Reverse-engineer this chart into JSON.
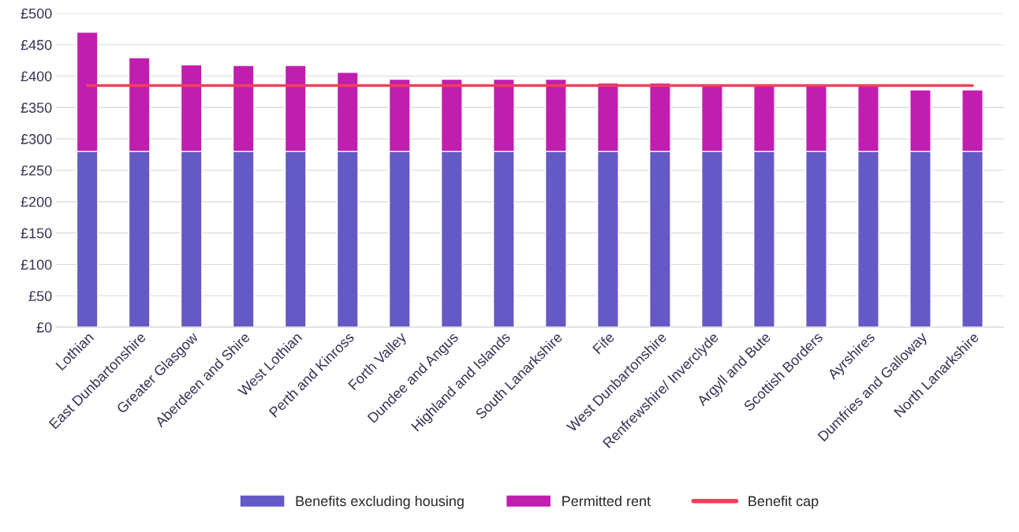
{
  "chart_data": {
    "type": "bar",
    "stacked": true,
    "categories": [
      "Lothian",
      "East Dunbartonshire",
      "Greater Glasgow",
      "Aberdeen and Shire",
      "West Lothian",
      "Perth and Kinross",
      "Forth Valley",
      "Dundee and Angus",
      "Highland and Islands",
      "South Lanarkshire",
      "Fife",
      "West Dunbartonshire",
      "Renfrewshire/ Inverclyde",
      "Argyll and Bute",
      "Scottish Borders",
      "Ayrshires",
      "Dumfries and Galloway",
      "North Lanarkshire"
    ],
    "series": [
      {
        "name": "Benefits excluding housing",
        "color": "#6459c5",
        "values": [
          280,
          280,
          280,
          280,
          280,
          280,
          280,
          280,
          280,
          280,
          280,
          280,
          280,
          280,
          280,
          280,
          280,
          280
        ]
      },
      {
        "name": "Permitted rent",
        "color": "#c11daf",
        "values": [
          190,
          149,
          138,
          137,
          137,
          126,
          115,
          115,
          115,
          115,
          109,
          109,
          105,
          105,
          105,
          105,
          98,
          98
        ]
      },
      {
        "name": "Benefit cap",
        "type": "line",
        "color": "#f0405a",
        "values": [
          385,
          385,
          385,
          385,
          385,
          385,
          385,
          385,
          385,
          385,
          385,
          385,
          385,
          385,
          385,
          385,
          385,
          385
        ]
      }
    ],
    "ylim": [
      0,
      500
    ],
    "yticks": [
      {
        "value": 0,
        "label": "£0"
      },
      {
        "value": 50,
        "label": "£50"
      },
      {
        "value": 100,
        "label": "£100"
      },
      {
        "value": 150,
        "label": "£150"
      },
      {
        "value": 200,
        "label": "£200"
      },
      {
        "value": 250,
        "label": "£250"
      },
      {
        "value": 300,
        "label": "£300"
      },
      {
        "value": 350,
        "label": "£350"
      },
      {
        "value": 400,
        "label": "£400"
      },
      {
        "value": 450,
        "label": "£450"
      },
      {
        "value": 500,
        "label": "£500"
      }
    ],
    "grid": "y",
    "legend": "bottom"
  }
}
